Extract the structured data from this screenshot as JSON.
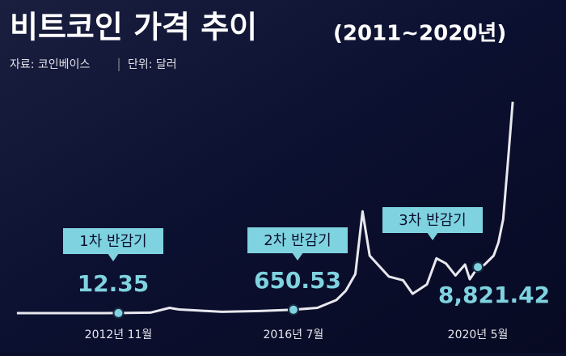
{
  "chart_data": {
    "type": "line",
    "title": "비트코인 가격 추이",
    "subtitle": "(2011~2020년)",
    "source": "자료: 코인베이스",
    "unit": "단위: 달러",
    "x": [
      2010.7,
      2012.0,
      2012.83,
      2013.5,
      2013.9,
      2014.1,
      2014.5,
      2015.0,
      2015.8,
      2016.5,
      2017.0,
      2017.4,
      2017.6,
      2017.8,
      2017.95,
      2018.1,
      2018.3,
      2018.5,
      2018.8,
      2019.0,
      2019.3,
      2019.5,
      2019.7,
      2019.9,
      2020.1,
      2020.2,
      2020.37,
      2020.5,
      2020.7,
      2020.8,
      2020.9,
      2021.0,
      2021.1
    ],
    "series": [
      {
        "color": "#e8e8ee",
        "values": [
          0,
          5,
          12,
          100,
          1000,
          700,
          500,
          250,
          400,
          650,
          1000,
          2500,
          4300,
          7500,
          19500,
          11000,
          9000,
          7000,
          6300,
          3700,
          5500,
          10500,
          9500,
          7200,
          9300,
          6500,
          8800,
          9200,
          11000,
          13500,
          18000,
          29000,
          40500
        ]
      }
    ],
    "xlim": [
      2010.6,
      2021.2
    ],
    "ylim": [
      0,
      42000
    ],
    "xticks": [
      {
        "value": 2012.83,
        "label": "2012년 11월"
      },
      {
        "value": 2016.5,
        "label": "2016년 7월"
      },
      {
        "value": 2020.37,
        "label": "2020년 5월"
      }
    ],
    "events": {
      "names": [
        "1차 반감기",
        "2차 반감기",
        "3차 반감기"
      ],
      "values": [
        12.35,
        650.53,
        8821.42
      ],
      "value_labels": [
        "12.35",
        "650.53",
        "8,821.42"
      ],
      "color": "#7fd3e0"
    }
  }
}
